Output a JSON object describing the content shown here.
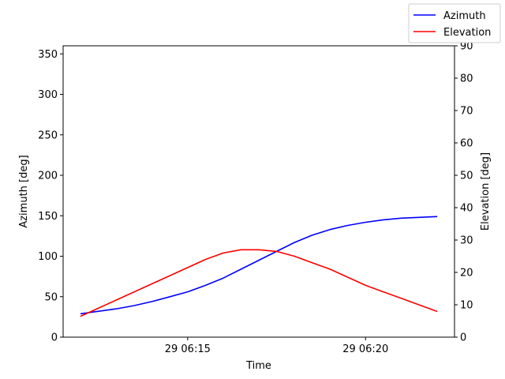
{
  "chart_data": {
    "type": "line",
    "xlabel": "Time",
    "x_ticks": [
      "29 06:15",
      "29 06:20"
    ],
    "x_tick_values": [
      15,
      20
    ],
    "xlim": [
      11.5,
      22.5
    ],
    "left_axis": {
      "label": "Azimuth [deg]",
      "ylim": [
        0,
        360
      ],
      "ticks": [
        0,
        50,
        100,
        150,
        200,
        250,
        300,
        350
      ]
    },
    "right_axis": {
      "label": "Elevation [deg]",
      "ylim": [
        0,
        90
      ],
      "ticks": [
        0,
        10,
        20,
        30,
        40,
        50,
        60,
        70,
        80,
        90
      ]
    },
    "x": [
      12,
      12.5,
      13,
      13.5,
      14,
      14.5,
      15,
      15.5,
      16,
      16.5,
      17,
      17.5,
      18,
      18.5,
      19,
      19.5,
      20,
      20.5,
      21,
      21.5,
      22
    ],
    "series": [
      {
        "name": "Azimuth",
        "axis": "left",
        "color": "#0000ff",
        "values": [
          29,
          32,
          35,
          39,
          44,
          50,
          56,
          64,
          73,
          84,
          95,
          106,
          117,
          126,
          133,
          138,
          142,
          145,
          147,
          148,
          149
        ]
      },
      {
        "name": "Elevation",
        "axis": "right",
        "color": "#ff0000",
        "values": [
          6.5,
          9,
          11.5,
          14,
          16.5,
          19,
          21.5,
          24,
          26,
          27,
          27,
          26.5,
          25,
          23,
          21,
          18.5,
          16,
          14,
          12,
          10,
          8
        ]
      }
    ],
    "legend_placement": "top-right",
    "grid": false
  }
}
